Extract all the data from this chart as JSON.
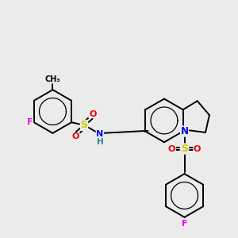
{
  "background_color": "#ebebeb",
  "atom_colors": {
    "C": "#000000",
    "N": "#0000ee",
    "O": "#ee0000",
    "S": "#cccc00",
    "F": "#ee00ee",
    "H": "#228888"
  },
  "bond_color": "#000000",
  "bond_width": 1.4,
  "figsize": [
    3.0,
    3.0
  ],
  "dpi": 100
}
